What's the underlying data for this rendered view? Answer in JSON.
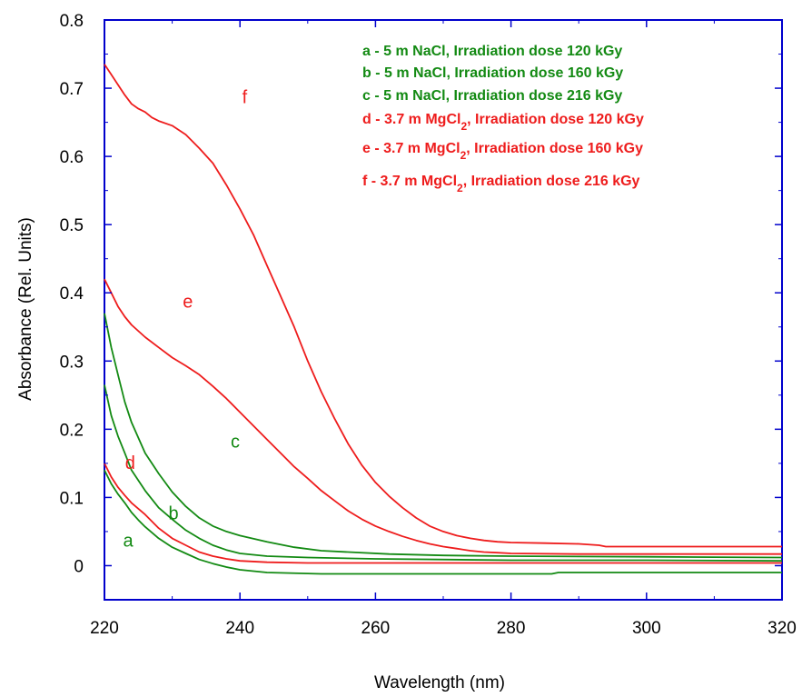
{
  "chart_data": {
    "type": "line",
    "xlabel": "Wavelength (nm)",
    "ylabel": "Absorbance (Rel. Units)",
    "xlim": [
      220,
      320
    ],
    "ylim": [
      -0.05,
      0.8
    ],
    "xticks": [
      220,
      240,
      260,
      280,
      300,
      320
    ],
    "yticks": [
      0,
      0.1,
      0.2,
      0.3,
      0.4,
      0.5,
      0.6,
      0.7,
      0.8
    ],
    "xtick_labels": [
      "220",
      "240",
      "260",
      "280",
      "300",
      "320"
    ],
    "ytick_labels": [
      "0",
      "0.1",
      "0.2",
      "0.3",
      "0.4",
      "0.5",
      "0.6",
      "0.7",
      "0.8"
    ],
    "grid": false,
    "legend_position": "top-right",
    "axis_color": "#0000cc",
    "series": [
      {
        "name": "a",
        "color": "#138a13",
        "points": [
          [
            220,
            0.14
          ],
          [
            221,
            0.12
          ],
          [
            222,
            0.105
          ],
          [
            223,
            0.092
          ],
          [
            224,
            0.078
          ],
          [
            225,
            0.067
          ],
          [
            226,
            0.057
          ],
          [
            228,
            0.04
          ],
          [
            230,
            0.027
          ],
          [
            232,
            0.018
          ],
          [
            234,
            0.009
          ],
          [
            236,
            0.003
          ],
          [
            238,
            -0.002
          ],
          [
            240,
            -0.006
          ],
          [
            242,
            -0.008
          ],
          [
            244,
            -0.01
          ],
          [
            252,
            -0.012
          ],
          [
            270,
            -0.012
          ],
          [
            286,
            -0.012
          ],
          [
            287,
            -0.01
          ],
          [
            300,
            -0.01
          ],
          [
            320,
            -0.01
          ]
        ]
      },
      {
        "name": "b",
        "color": "#138a13",
        "points": [
          [
            220,
            0.265
          ],
          [
            221,
            0.22
          ],
          [
            222,
            0.19
          ],
          [
            223,
            0.165
          ],
          [
            224,
            0.14
          ],
          [
            226,
            0.11
          ],
          [
            228,
            0.085
          ],
          [
            230,
            0.068
          ],
          [
            232,
            0.052
          ],
          [
            234,
            0.04
          ],
          [
            236,
            0.03
          ],
          [
            238,
            0.023
          ],
          [
            240,
            0.018
          ],
          [
            244,
            0.014
          ],
          [
            250,
            0.012
          ],
          [
            260,
            0.01
          ],
          [
            280,
            0.008
          ],
          [
            300,
            0.008
          ],
          [
            320,
            0.007
          ]
        ]
      },
      {
        "name": "c",
        "color": "#138a13",
        "points": [
          [
            220,
            0.37
          ],
          [
            221,
            0.32
          ],
          [
            222,
            0.28
          ],
          [
            223,
            0.24
          ],
          [
            224,
            0.21
          ],
          [
            226,
            0.165
          ],
          [
            228,
            0.135
          ],
          [
            230,
            0.108
          ],
          [
            232,
            0.087
          ],
          [
            234,
            0.07
          ],
          [
            236,
            0.058
          ],
          [
            238,
            0.05
          ],
          [
            240,
            0.044
          ],
          [
            244,
            0.035
          ],
          [
            248,
            0.027
          ],
          [
            252,
            0.022
          ],
          [
            256,
            0.02
          ],
          [
            262,
            0.017
          ],
          [
            270,
            0.015
          ],
          [
            280,
            0.014
          ],
          [
            300,
            0.013
          ],
          [
            320,
            0.012
          ]
        ]
      },
      {
        "name": "d",
        "color": "#ee1c1c",
        "points": [
          [
            220,
            0.15
          ],
          [
            221,
            0.13
          ],
          [
            222,
            0.115
          ],
          [
            223,
            0.103
          ],
          [
            224,
            0.092
          ],
          [
            226,
            0.075
          ],
          [
            228,
            0.055
          ],
          [
            230,
            0.04
          ],
          [
            232,
            0.03
          ],
          [
            234,
            0.02
          ],
          [
            236,
            0.014
          ],
          [
            238,
            0.01
          ],
          [
            240,
            0.007
          ],
          [
            244,
            0.005
          ],
          [
            250,
            0.004
          ],
          [
            260,
            0.004
          ],
          [
            280,
            0.004
          ],
          [
            300,
            0.004
          ],
          [
            320,
            0.004
          ]
        ]
      },
      {
        "name": "e",
        "color": "#ee1c1c",
        "points": [
          [
            220,
            0.42
          ],
          [
            221,
            0.4
          ],
          [
            222,
            0.38
          ],
          [
            223,
            0.365
          ],
          [
            224,
            0.353
          ],
          [
            226,
            0.335
          ],
          [
            228,
            0.32
          ],
          [
            230,
            0.305
          ],
          [
            232,
            0.293
          ],
          [
            234,
            0.28
          ],
          [
            236,
            0.263
          ],
          [
            238,
            0.245
          ],
          [
            240,
            0.225
          ],
          [
            242,
            0.205
          ],
          [
            244,
            0.185
          ],
          [
            246,
            0.165
          ],
          [
            248,
            0.145
          ],
          [
            250,
            0.128
          ],
          [
            252,
            0.11
          ],
          [
            254,
            0.095
          ],
          [
            256,
            0.08
          ],
          [
            258,
            0.068
          ],
          [
            260,
            0.058
          ],
          [
            262,
            0.05
          ],
          [
            264,
            0.043
          ],
          [
            266,
            0.037
          ],
          [
            268,
            0.032
          ],
          [
            270,
            0.028
          ],
          [
            272,
            0.025
          ],
          [
            274,
            0.022
          ],
          [
            276,
            0.02
          ],
          [
            278,
            0.019
          ],
          [
            280,
            0.018
          ],
          [
            290,
            0.017
          ],
          [
            300,
            0.017
          ],
          [
            320,
            0.017
          ]
        ]
      },
      {
        "name": "f",
        "color": "#ee1c1c",
        "points": [
          [
            220,
            0.735
          ],
          [
            221,
            0.72
          ],
          [
            222,
            0.705
          ],
          [
            223,
            0.69
          ],
          [
            224,
            0.677
          ],
          [
            225,
            0.67
          ],
          [
            226,
            0.665
          ],
          [
            227,
            0.657
          ],
          [
            228,
            0.652
          ],
          [
            230,
            0.645
          ],
          [
            232,
            0.632
          ],
          [
            234,
            0.612
          ],
          [
            236,
            0.59
          ],
          [
            238,
            0.558
          ],
          [
            240,
            0.523
          ],
          [
            242,
            0.485
          ],
          [
            244,
            0.44
          ],
          [
            246,
            0.395
          ],
          [
            248,
            0.35
          ],
          [
            250,
            0.3
          ],
          [
            252,
            0.255
          ],
          [
            254,
            0.215
          ],
          [
            256,
            0.178
          ],
          [
            258,
            0.147
          ],
          [
            260,
            0.122
          ],
          [
            262,
            0.102
          ],
          [
            264,
            0.085
          ],
          [
            266,
            0.07
          ],
          [
            268,
            0.058
          ],
          [
            270,
            0.05
          ],
          [
            272,
            0.044
          ],
          [
            274,
            0.04
          ],
          [
            276,
            0.037
          ],
          [
            278,
            0.035
          ],
          [
            280,
            0.034
          ],
          [
            285,
            0.033
          ],
          [
            290,
            0.032
          ],
          [
            293,
            0.03
          ],
          [
            294,
            0.028
          ],
          [
            300,
            0.028
          ],
          [
            310,
            0.028
          ],
          [
            320,
            0.028
          ]
        ]
      }
    ],
    "curve_labels": [
      {
        "text": "a",
        "color": "#138a13",
        "x": 223.5,
        "y": 0.028
      },
      {
        "text": "b",
        "color": "#138a13",
        "x": 230.2,
        "y": 0.068
      },
      {
        "text": "c",
        "color": "#138a13",
        "x": 239.3,
        "y": 0.173
      },
      {
        "text": "d",
        "color": "#ee1c1c",
        "x": 223.8,
        "y": 0.142
      },
      {
        "text": "e",
        "color": "#ee1c1c",
        "x": 232.3,
        "y": 0.378
      },
      {
        "text": "f",
        "color": "#ee1c1c",
        "x": 240.7,
        "y": 0.678
      }
    ],
    "legend": [
      {
        "text": "a - 5 m NaCl, Irradiation dose 120 kGy",
        "color": "#138a13",
        "sub": ""
      },
      {
        "text": "b - 5 m NaCl, Irradiation dose 160 kGy",
        "color": "#138a13",
        "sub": ""
      },
      {
        "text": "c - 5 m NaCl, Irradiation dose 216 kGy",
        "color": "#138a13",
        "sub": ""
      },
      {
        "text": "d - 3.7 m MgCl",
        "color": "#ee1c1c",
        "sub": "2",
        "rest": ", Irradiation dose 120 kGy"
      },
      {
        "text": "e - 3.7 m MgCl",
        "color": "#ee1c1c",
        "sub": "2",
        "rest": ", Irradiation dose 160 kGy"
      },
      {
        "text": "f - 3.7 m MgCl",
        "color": "#ee1c1c",
        "sub": "2",
        "rest": ", Irradiation dose 216 kGy"
      }
    ]
  }
}
